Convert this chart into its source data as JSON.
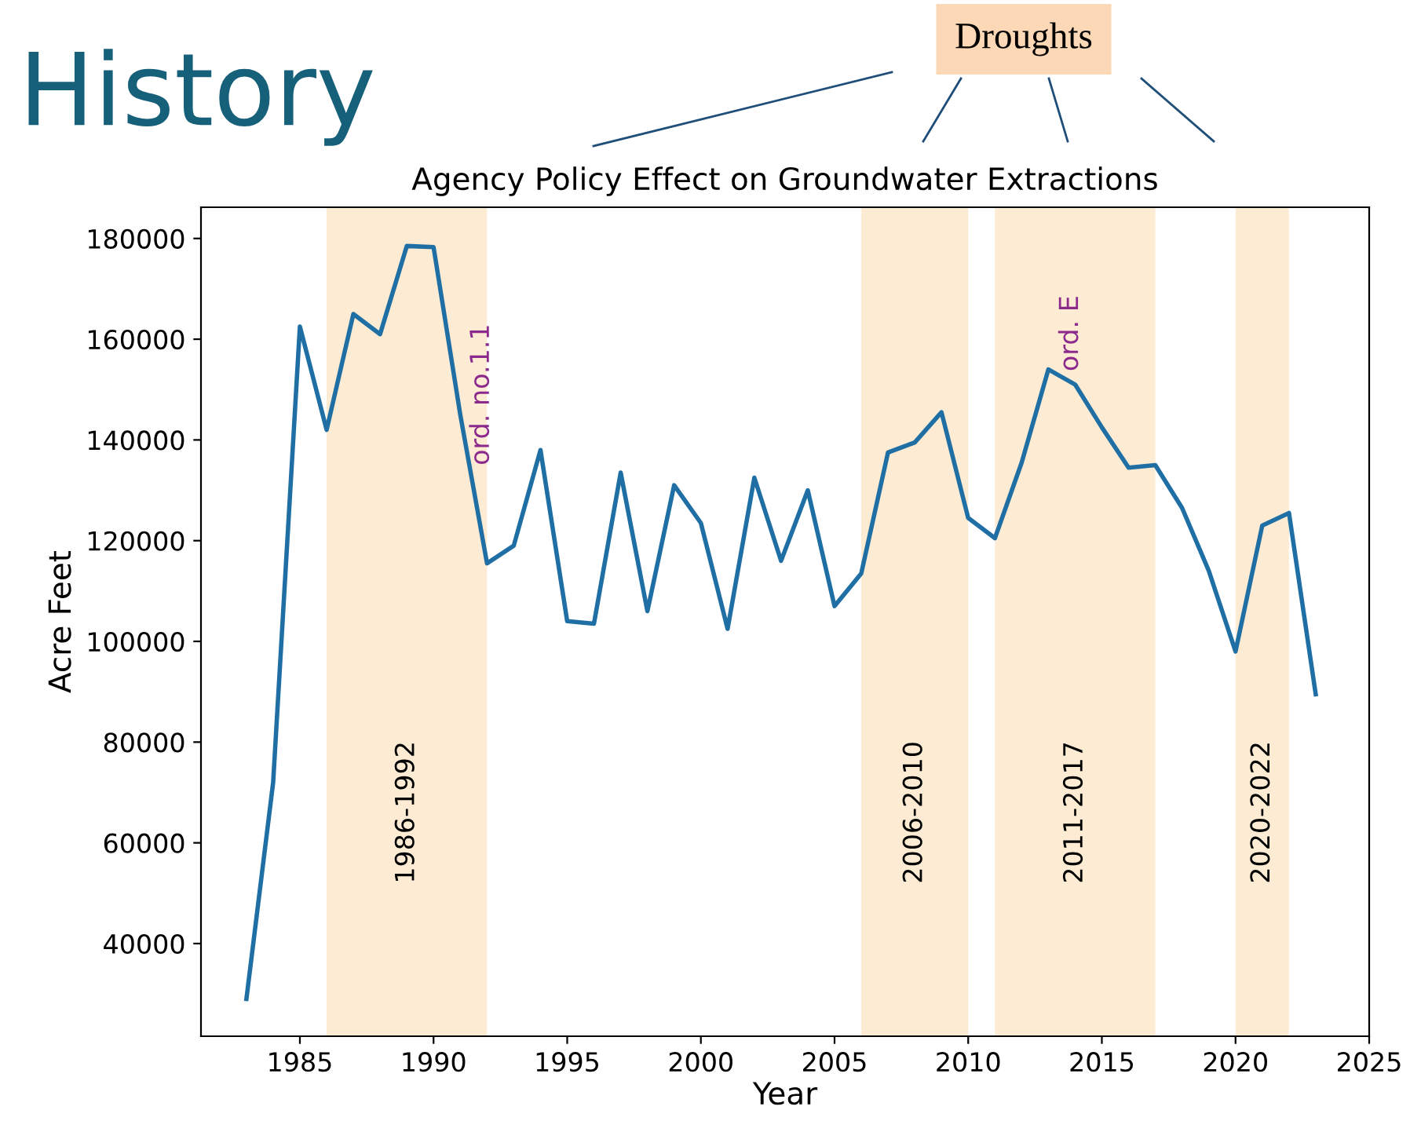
{
  "chart_data": {
    "type": "line",
    "title": "Agency Policy Effect on Groundwater Extractions",
    "xlabel": "Year",
    "ylabel": "Acre Feet",
    "x": [
      1983,
      1984,
      1985,
      1986,
      1987,
      1988,
      1989,
      1990,
      1991,
      1992,
      1993,
      1994,
      1995,
      1996,
      1997,
      1998,
      1999,
      2000,
      2001,
      2002,
      2003,
      2004,
      2005,
      2006,
      2007,
      2008,
      2009,
      2010,
      2011,
      2012,
      2013,
      2014,
      2015,
      2016,
      2017,
      2018,
      2019,
      2020,
      2021,
      2022,
      2023
    ],
    "series": [
      {
        "color": "#1f6fa5",
        "values": [
          29000,
          72000,
          162500,
          142000,
          165000,
          161000,
          178500,
          178300,
          145000,
          115500,
          119000,
          138000,
          104000,
          103500,
          133500,
          106000,
          131000,
          123500,
          102500,
          132500,
          116000,
          130000,
          107000,
          113500,
          137500,
          139500,
          145500,
          124500,
          120500,
          135500,
          154000,
          151000,
          142500,
          134500,
          135000,
          126500,
          114000,
          98000,
          123000,
          125500,
          89500
        ]
      }
    ],
    "xlim": [
      1981.3,
      2025
    ],
    "ylim": [
      21600,
      186200
    ],
    "xticks": [
      1985,
      1990,
      1995,
      2000,
      2005,
      2010,
      2015,
      2020,
      2025
    ],
    "yticks": [
      40000,
      60000,
      80000,
      100000,
      120000,
      140000,
      160000,
      180000
    ],
    "grid": false,
    "marker": "none",
    "line_style": "solid",
    "bands": [
      {
        "axis": "x",
        "from": 1986,
        "to": 1992,
        "label": "1986-1992",
        "color": "#fdecd3"
      },
      {
        "axis": "x",
        "from": 2006,
        "to": 2010,
        "label": "2006-2010",
        "color": "#fdecd3"
      },
      {
        "axis": "x",
        "from": 2011,
        "to": 2017,
        "label": "2011-2017",
        "color": "#fdecd3"
      },
      {
        "axis": "x",
        "from": 2020,
        "to": 2022,
        "label": "2020-2022",
        "color": "#fdecd3"
      }
    ],
    "annotations": [
      "History",
      "Droughts",
      {
        "text": "ord. no.1.1",
        "x": 1991.8,
        "y": 149000
      },
      {
        "text": "ord. E",
        "x": 2014,
        "y": 151000
      }
    ]
  }
}
